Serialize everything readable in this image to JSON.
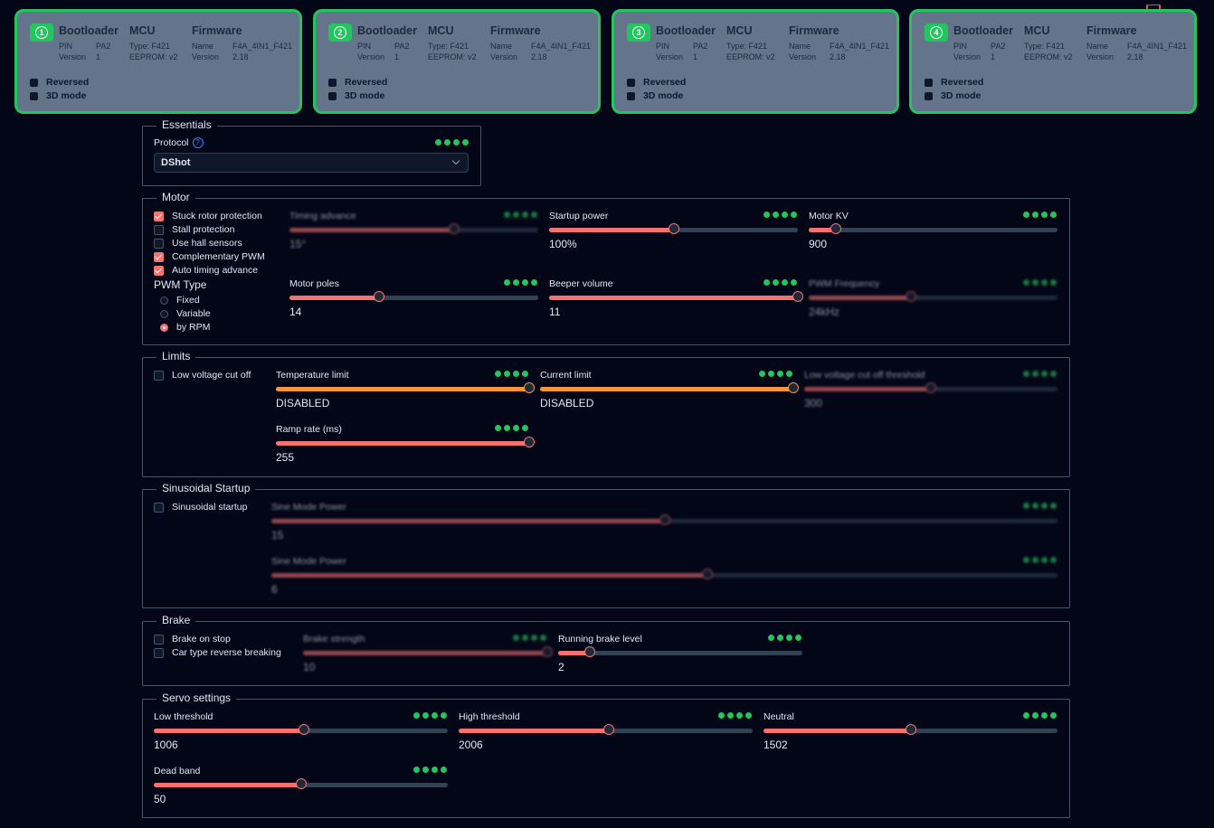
{
  "escs": [
    {
      "num": "1",
      "bootloader": {
        "title": "Bootloader",
        "pin_label": "PIN",
        "pin": "PA2",
        "version_label": "Version",
        "version": "1"
      },
      "mcu": {
        "title": "MCU",
        "type": "Type: F421",
        "eeprom": "EEPROM: v2"
      },
      "firmware": {
        "title": "Firmware",
        "name_label": "Name",
        "name": "F4A_4IN1_F421",
        "version_label": "Version",
        "version": "2.18"
      },
      "reversed": "Reversed",
      "mode3d": "3D mode"
    },
    {
      "num": "2",
      "bootloader": {
        "title": "Bootloader",
        "pin_label": "PIN",
        "pin": "PA2",
        "version_label": "Version",
        "version": "1"
      },
      "mcu": {
        "title": "MCU",
        "type": "Type: F421",
        "eeprom": "EEPROM: v2"
      },
      "firmware": {
        "title": "Firmware",
        "name_label": "Name",
        "name": "F4A_4IN1_F421",
        "version_label": "Version",
        "version": "2.18"
      },
      "reversed": "Reversed",
      "mode3d": "3D mode"
    },
    {
      "num": "3",
      "bootloader": {
        "title": "Bootloader",
        "pin_label": "PIN",
        "pin": "PA2",
        "version_label": "Version",
        "version": "1"
      },
      "mcu": {
        "title": "MCU",
        "type": "Type: F421",
        "eeprom": "EEPROM: v2"
      },
      "firmware": {
        "title": "Firmware",
        "name_label": "Name",
        "name": "F4A_4IN1_F421",
        "version_label": "Version",
        "version": "2.18"
      },
      "reversed": "Reversed",
      "mode3d": "3D mode"
    },
    {
      "num": "4",
      "bootloader": {
        "title": "Bootloader",
        "pin_label": "PIN",
        "pin": "PA2",
        "version_label": "Version",
        "version": "1"
      },
      "mcu": {
        "title": "MCU",
        "type": "Type: F421",
        "eeprom": "EEPROM: v2"
      },
      "firmware": {
        "title": "Firmware",
        "name_label": "Name",
        "name": "F4A_4IN1_F421",
        "version_label": "Version",
        "version": "2.18"
      },
      "reversed": "Reversed",
      "mode3d": "3D mode"
    }
  ],
  "essentials": {
    "title": "Essentials",
    "protocol_label": "Protocol",
    "protocol_help": "?",
    "protocol_value": "DShot"
  },
  "motor": {
    "title": "Motor",
    "checks": [
      {
        "label": "Stuck rotor protection",
        "checked": true
      },
      {
        "label": "Stall protection",
        "checked": false
      },
      {
        "label": "Use hall sensors",
        "checked": false
      },
      {
        "label": "Complementary PWM",
        "checked": true
      },
      {
        "label": "Auto timing advance",
        "checked": true
      }
    ],
    "pwm_type_label": "PWM Type",
    "pwm_options": [
      {
        "label": "Fixed",
        "selected": false
      },
      {
        "label": "Variable",
        "selected": false
      },
      {
        "label": "by RPM",
        "selected": true
      }
    ],
    "sliders": [
      {
        "label": "Timing advance",
        "value": "15°",
        "level": 0.66,
        "disabled": true
      },
      {
        "label": "Startup power",
        "value": "100%",
        "level": 0.5
      },
      {
        "label": "Motor KV",
        "value": "900",
        "level": 0.11
      },
      {
        "label": "Motor poles",
        "value": "14",
        "level": 0.36
      },
      {
        "label": "Beeper volume",
        "value": "11",
        "level": 1.0
      },
      {
        "label": "PWM Frequency",
        "value": "24kHz",
        "level": 0.41,
        "disabled": true
      }
    ]
  },
  "limits": {
    "title": "Limits",
    "low_voltage_label": "Low voltage cut off",
    "sliders": [
      {
        "label": "Temperature limit",
        "value": "DISABLED",
        "level": 1.0,
        "color": "orange"
      },
      {
        "label": "Current limit",
        "value": "DISABLED",
        "level": 1.0,
        "color": "orange"
      },
      {
        "label": "Low voltage cut off threshold",
        "value": "300",
        "level": 0.5,
        "disabled": true
      },
      {
        "label": "Ramp rate (ms)",
        "value": "255",
        "level": 1.0
      }
    ]
  },
  "sinusoidal": {
    "title": "Sinusoidal Startup",
    "check_label": "Sinusoidal startup",
    "sliders": [
      {
        "label": "Sine Mode Power",
        "value": "15",
        "level": 0.5,
        "disabled": true
      },
      {
        "label": "Sine Mode Power",
        "value": "6",
        "level": 0.555,
        "disabled": true
      }
    ]
  },
  "brake": {
    "title": "Brake",
    "checks": [
      {
        "label": "Brake on stop"
      },
      {
        "label": "Car type reverse breaking"
      }
    ],
    "sliders": [
      {
        "label": "Brake strength",
        "value": "10",
        "level": 1.0,
        "disabled": true
      },
      {
        "label": "Running brake level",
        "value": "2",
        "level": 0.13
      }
    ]
  },
  "servo": {
    "title": "Servo settings",
    "sliders": [
      {
        "label": "Low threshold",
        "value": "1006",
        "level": 0.51
      },
      {
        "label": "High threshold",
        "value": "2006",
        "level": 0.51
      },
      {
        "label": "Neutral",
        "value": "1502",
        "level": 0.5
      },
      {
        "label": "Dead band",
        "value": "50",
        "level": 0.5
      }
    ]
  },
  "colors": {
    "accent": "#f87171",
    "ok": "#22c55e",
    "warn": "#fb923c",
    "track": "#334155"
  }
}
